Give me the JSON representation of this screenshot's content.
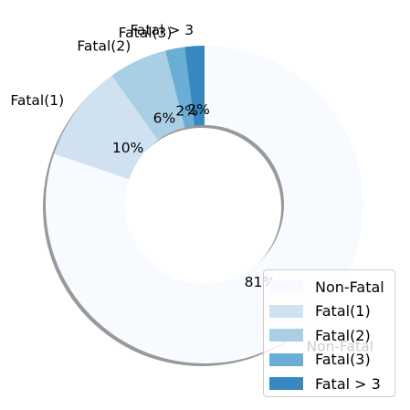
{
  "chart_data": {
    "type": "pie",
    "variant": "donut",
    "title": "",
    "categories": [
      "Non-Fatal",
      "Fatal(1)",
      "Fatal(2)",
      "Fatal(3)",
      "Fatal > 3"
    ],
    "values": [
      81,
      10,
      6,
      2,
      2
    ],
    "percent_labels": [
      "81%",
      "10%",
      "6%",
      "2%",
      "2%"
    ],
    "slice_labels": [
      "Non-Fatal",
      "Fatal(1)",
      "Fatal(2)",
      "Fatal(3)",
      "Fatal > 3"
    ],
    "colors": [
      "#f7fbff",
      "#d0e1f2",
      "#a9cfe5",
      "#6aaed6",
      "#3787c0"
    ],
    "start_angle_deg": 90,
    "direction": "clockwise",
    "shadow": true,
    "legend": {
      "placement": "lower-right",
      "entries": [
        "Non-Fatal",
        "Fatal(1)",
        "Fatal(2)",
        "Fatal(3)",
        "Fatal > 3"
      ]
    }
  }
}
